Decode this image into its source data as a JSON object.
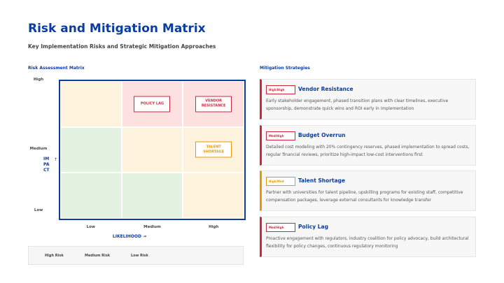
{
  "header": {
    "title": "Risk and Mitigation Matrix",
    "subtitle": "Key Implementation Risks and Strategic Mitigation Approaches"
  },
  "matrix_panel": {
    "heading": "Risk Assessment Matrix",
    "y_axis": {
      "title": "IMPACT",
      "arrow": "↑"
    },
    "x_axis": {
      "title": "LIKELIHOOD →",
      "labels": [
        "Low",
        "Medium",
        "High"
      ]
    },
    "rows": [
      {
        "label": "High",
        "cells": [
          {
            "color": "#fdf3dc"
          },
          {
            "color": "#fde1e1",
            "risk": {
              "text": "POLICY LAG",
              "color": "#d0253a"
            }
          },
          {
            "color": "#fde1e1",
            "risk": {
              "text": "VENDOR RESISTANCE",
              "color": "#d0253a"
            }
          }
        ]
      },
      {
        "label": "Medium",
        "cells": [
          {
            "color": "#e4f2e2"
          },
          {
            "color": "#fdf3dc"
          },
          {
            "color": "#fdf3dc",
            "risk": {
              "text": "TALENT SHORTAGE",
              "color": "#e69a00"
            }
          }
        ]
      },
      {
        "label": "Low",
        "cells": [
          {
            "color": "#e4f2e2"
          },
          {
            "color": "#e4f2e2"
          },
          {
            "color": "#fdf3dc"
          }
        ]
      }
    ],
    "legend": [
      "High Risk",
      "Medium Risk",
      "Low Risk"
    ]
  },
  "mitigation_panel": {
    "heading": "Mitigation Strategies",
    "cards": [
      {
        "tag": "High/High",
        "title": "Vendor Resistance",
        "color": "#d0253a",
        "text": "Early stakeholder engagement, phased transition plans with clear timelines, executive sponsorship, demonstrate quick wins and ROI early in implementation"
      },
      {
        "tag": "Med/High",
        "title": "Budget Overrun",
        "color": "#d0253a",
        "text": "Detailed cost modeling with 20% contingency reserves, phased implementation to spread costs, regular financial reviews, prioritize high-impact low-cost interventions first"
      },
      {
        "tag": "High/Med",
        "title": "Talent Shortage",
        "color": "#e69a00",
        "text": "Partner with universities for talent pipeline, upskilling programs for existing staff, competitive compensation packages, leverage external consultants for knowledge transfer"
      },
      {
        "tag": "Med/High",
        "title": "Policy Lag",
        "color": "#d0253a",
        "text": "Proactive engagement with regulators, industry coalition for policy advocacy, build architectural flexibility for policy changes, continuous regulatory monitoring"
      }
    ]
  }
}
